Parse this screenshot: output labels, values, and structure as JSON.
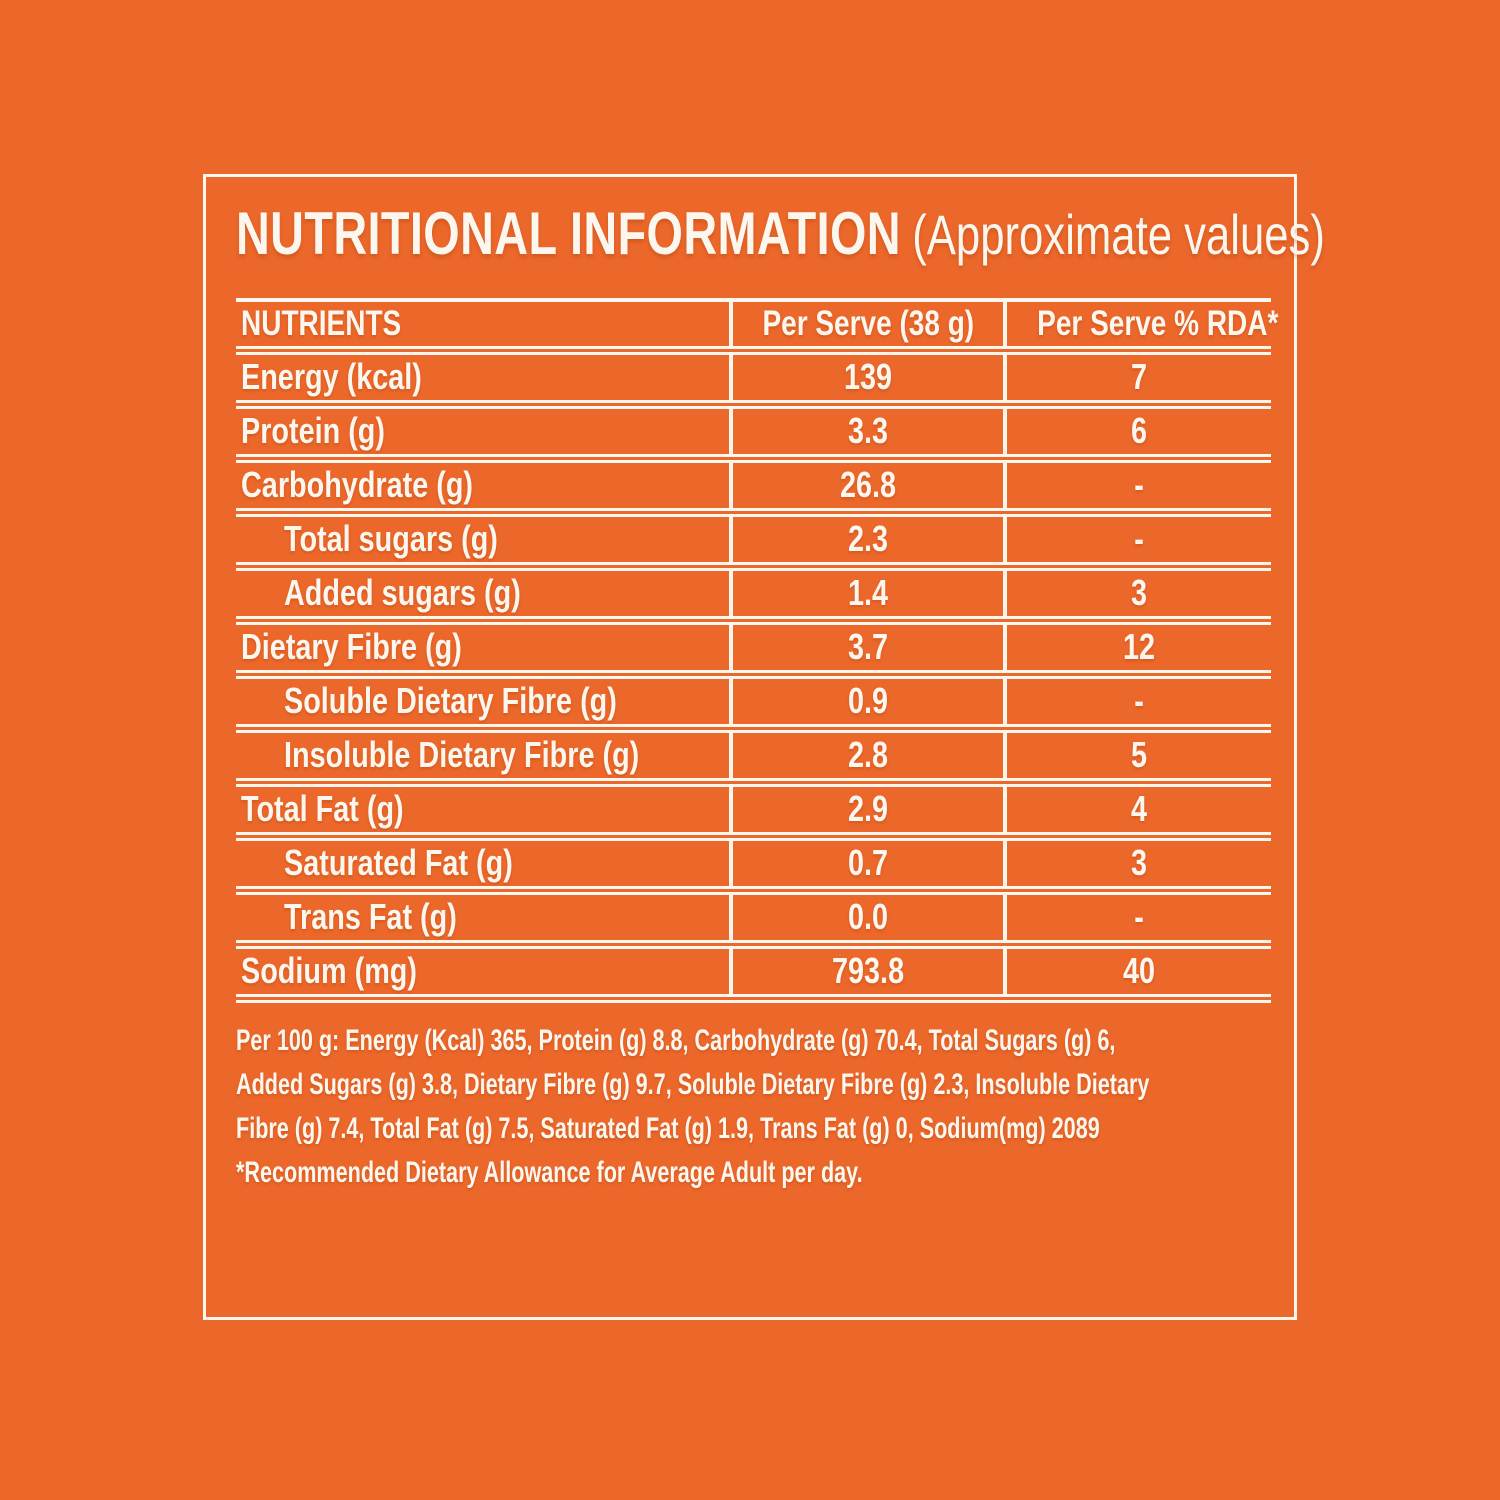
{
  "colors": {
    "background": "#ec672a",
    "foreground": "#fbf7ef"
  },
  "title": {
    "main": "NUTRITIONAL INFORMATION",
    "qualifier": "(Approximate values)"
  },
  "table": {
    "headers": {
      "nutrients": "NUTRIENTS",
      "per_serve": "Per Serve (38 g)",
      "per_serve_rda": "Per Serve % RDA*"
    },
    "rows": [
      {
        "label": "Energy (kcal)",
        "per_serve": "139",
        "rda": "7",
        "indent": false
      },
      {
        "label": "Protein (g)",
        "per_serve": "3.3",
        "rda": "6",
        "indent": false
      },
      {
        "label": "Carbohydrate (g)",
        "per_serve": "26.8",
        "rda": "-",
        "indent": false
      },
      {
        "label": "Total sugars (g)",
        "per_serve": "2.3",
        "rda": "-",
        "indent": true
      },
      {
        "label": "Added sugars (g)",
        "per_serve": "1.4",
        "rda": "3",
        "indent": true
      },
      {
        "label": "Dietary Fibre (g)",
        "per_serve": "3.7",
        "rda": "12",
        "indent": false
      },
      {
        "label": "Soluble Dietary Fibre (g)",
        "per_serve": "0.9",
        "rda": "-",
        "indent": true
      },
      {
        "label": "Insoluble Dietary Fibre (g)",
        "per_serve": "2.8",
        "rda": "5",
        "indent": true
      },
      {
        "label": "Total Fat (g)",
        "per_serve": "2.9",
        "rda": "4",
        "indent": false
      },
      {
        "label": "Saturated Fat (g)",
        "per_serve": "0.7",
        "rda": "3",
        "indent": true
      },
      {
        "label": "Trans Fat (g)",
        "per_serve": "0.0",
        "rda": "-",
        "indent": true
      },
      {
        "label": "Sodium (mg)",
        "per_serve": "793.8",
        "rda": "40",
        "indent": false
      }
    ]
  },
  "footnotes": {
    "lines": [
      "Per 100 g: Energy (Kcal) 365, Protein (g) 8.8, Carbohydrate (g) 70.4, Total Sugars (g) 6,",
      "Added Sugars (g) 3.8, Dietary Fibre (g) 9.7, Soluble Dietary Fibre (g) 2.3, Insoluble Dietary",
      "Fibre (g) 7.4, Total Fat (g) 7.5, Saturated Fat (g) 1.9, Trans Fat (g) 0, Sodium(mg) 2089",
      "*Recommended Dietary Allowance for Average Adult per day."
    ]
  }
}
